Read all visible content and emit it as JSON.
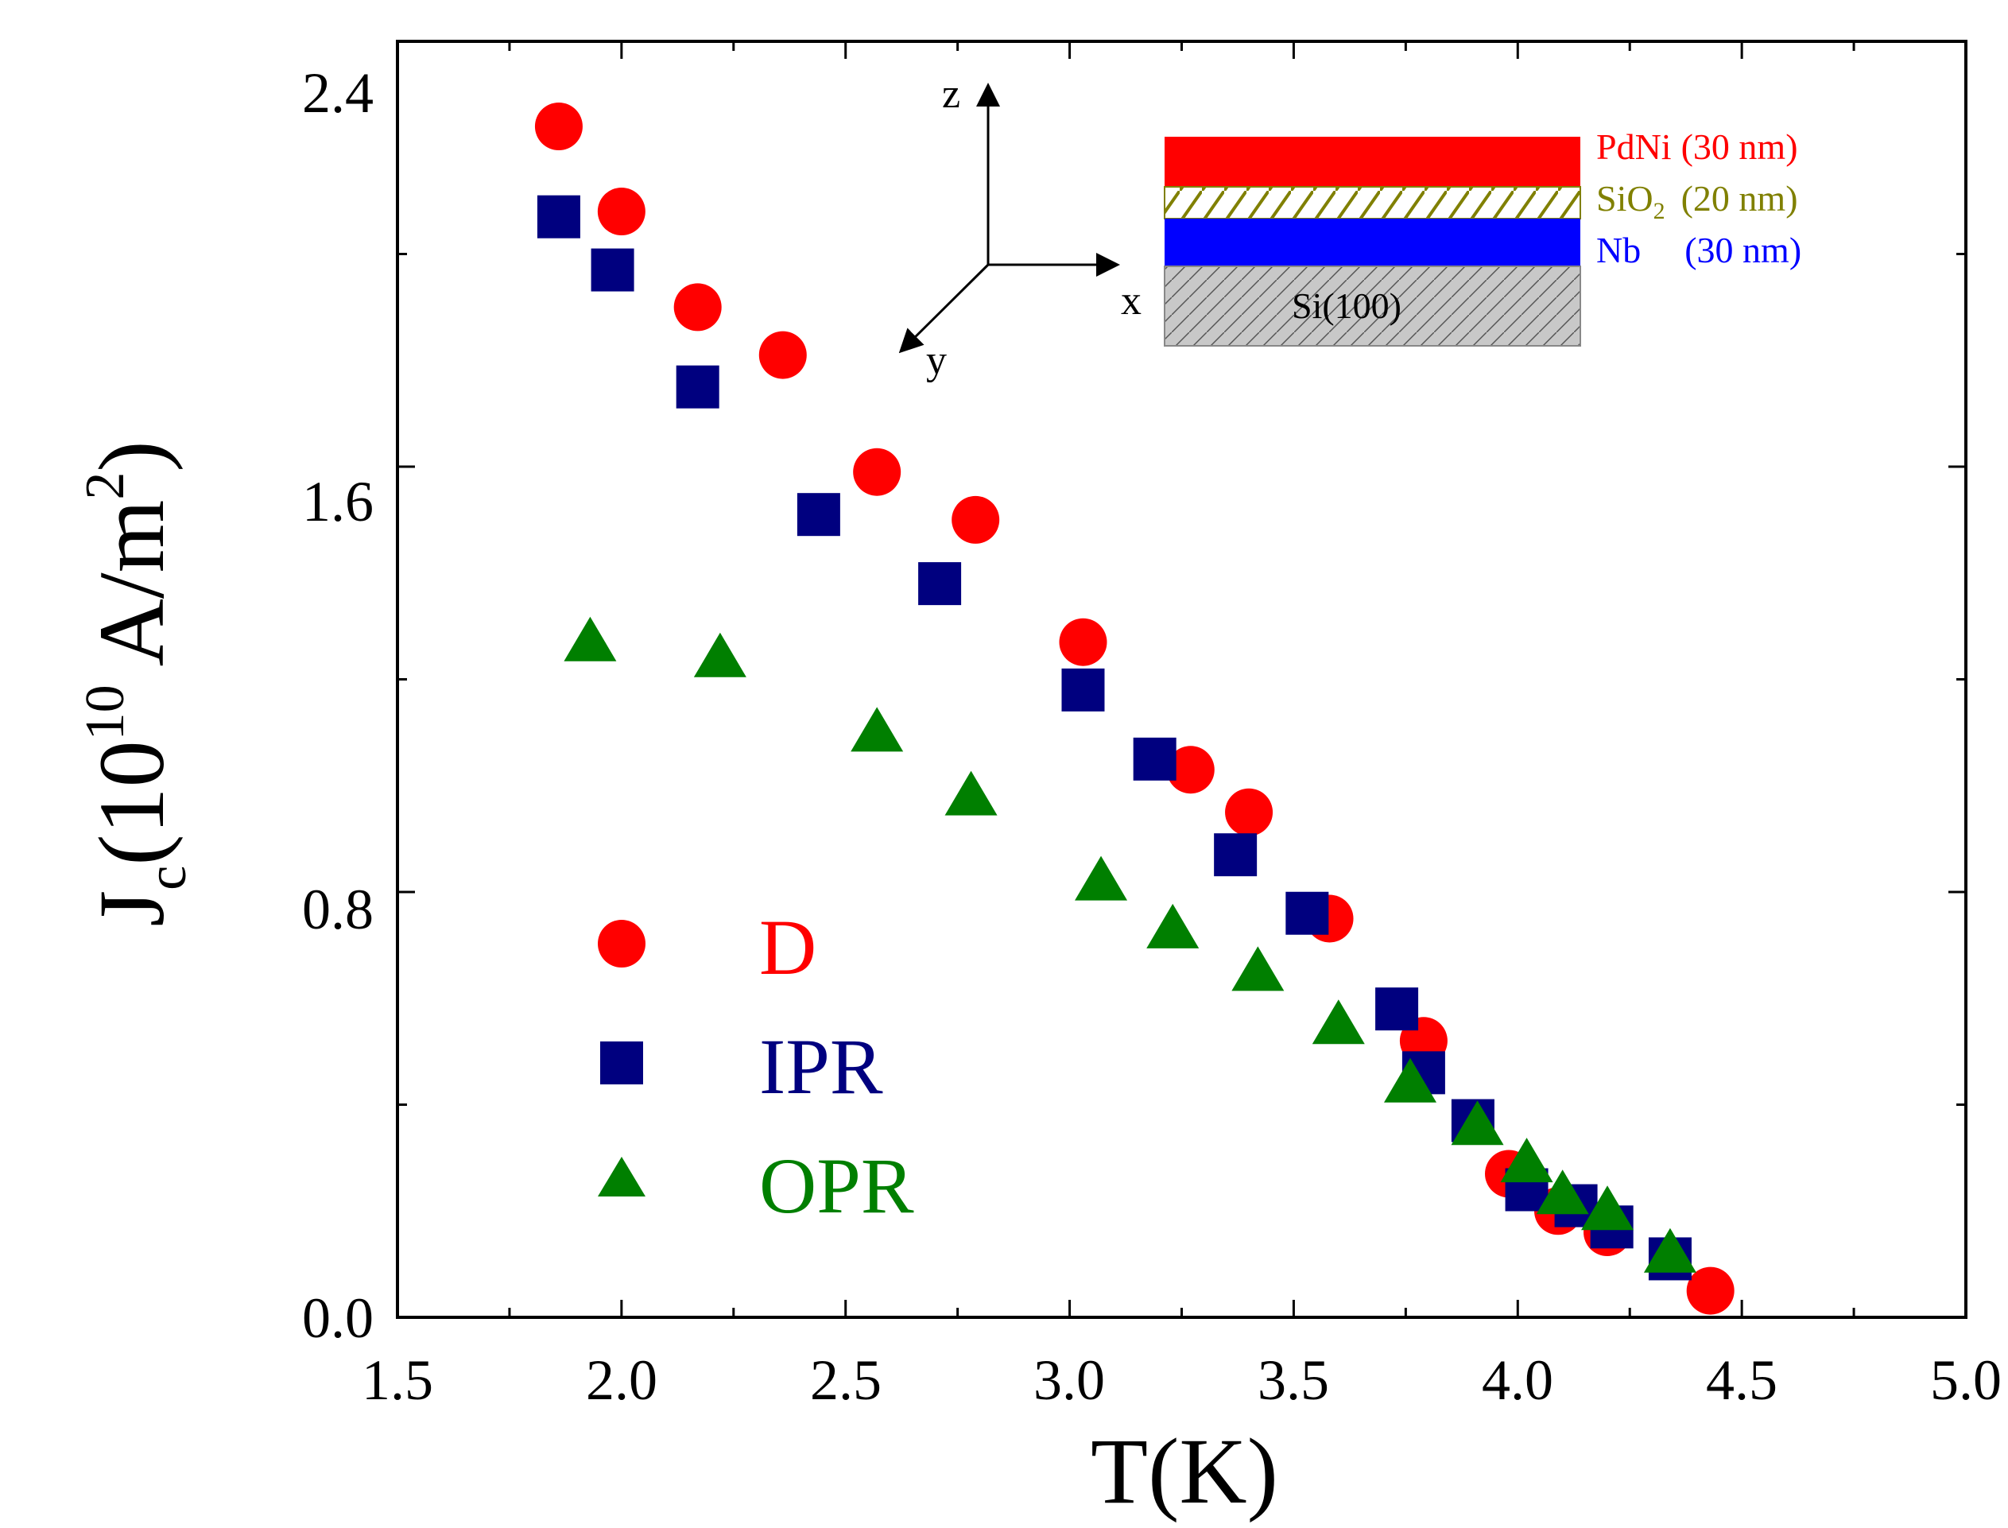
{
  "chart_data": {
    "type": "scatter",
    "xlabel": "T(K)",
    "ylabel": {
      "main": "J",
      "subscript": "c",
      "open": "(",
      "base": "10",
      "exponent": "10",
      "unit": " A/m",
      "unit_exponent": "2",
      "close": ")"
    },
    "xlim": [
      1.5,
      5.0
    ],
    "ylim": [
      0.0,
      2.4
    ],
    "xticks": [
      "1.5",
      "2.0",
      "2.5",
      "3.0",
      "3.5",
      "4.0",
      "4.5",
      "5.0"
    ],
    "yticks": [
      "0.0",
      "0.8",
      "1.6",
      "2.4"
    ],
    "series": [
      {
        "name": "D",
        "marker": "circle",
        "color": "#ff0000",
        "x": [
          1.86,
          2.0,
          2.17,
          2.36,
          2.57,
          2.79,
          3.03,
          3.27,
          3.4,
          3.58,
          3.79,
          3.98,
          4.09,
          4.2,
          4.43
        ],
        "y": [
          2.24,
          2.08,
          1.9,
          1.81,
          1.59,
          1.5,
          1.27,
          1.03,
          0.95,
          0.75,
          0.52,
          0.27,
          0.2,
          0.16,
          0.05
        ]
      },
      {
        "name": "IPR",
        "marker": "square",
        "color": "#00007f",
        "x": [
          1.86,
          1.98,
          2.17,
          2.44,
          2.71,
          3.03,
          3.19,
          3.37,
          3.53,
          3.73,
          3.79,
          3.9,
          4.02,
          4.13,
          4.21,
          4.34
        ],
        "y": [
          2.07,
          1.97,
          1.75,
          1.51,
          1.38,
          1.18,
          1.05,
          0.87,
          0.76,
          0.58,
          0.46,
          0.37,
          0.24,
          0.21,
          0.17,
          0.11
        ]
      },
      {
        "name": "OPR",
        "marker": "triangle",
        "color": "#007f00",
        "x": [
          1.93,
          2.22,
          2.57,
          2.78,
          3.07,
          3.23,
          3.42,
          3.6,
          3.76,
          3.91,
          4.02,
          4.1,
          4.2,
          4.34
        ],
        "y": [
          1.27,
          1.24,
          1.1,
          0.98,
          0.82,
          0.73,
          0.65,
          0.55,
          0.44,
          0.36,
          0.29,
          0.23,
          0.2,
          0.12
        ]
      }
    ],
    "legend": {
      "placement": "bottom-left",
      "entries": [
        "D",
        "IPR",
        "OPR"
      ]
    },
    "inset": {
      "axes": {
        "x": "x",
        "y": "y",
        "z": "z"
      },
      "layers": [
        {
          "name": "PdNi",
          "thickness": "(30 nm)",
          "color": "#ff0000",
          "label_color": "#ff0000"
        },
        {
          "name": "SiO",
          "subscript": "2",
          "thickness": "(20 nm)",
          "color": "#808000",
          "label_color": "#808000"
        },
        {
          "name": "Nb",
          "thickness": "(30 nm)",
          "color": "#0000ff",
          "label_color": "#0000ff"
        },
        {
          "name": "Si(100)",
          "color": "#c8c8c8",
          "label_color": "#000000"
        }
      ]
    }
  }
}
